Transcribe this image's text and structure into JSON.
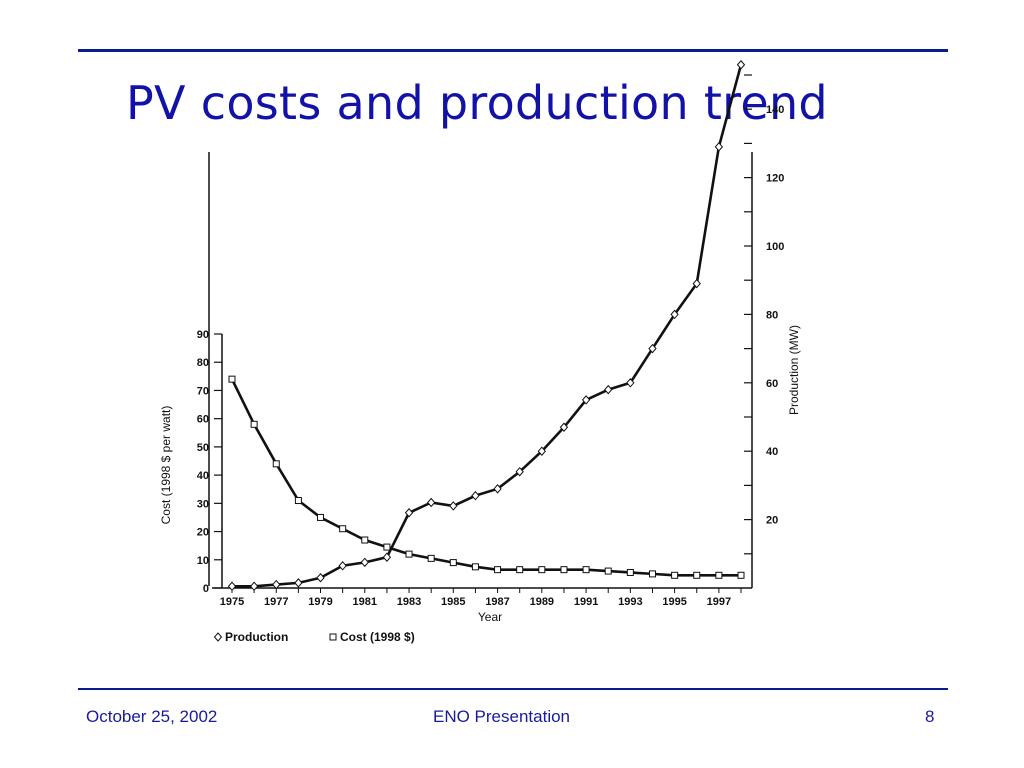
{
  "slide": {
    "title": "PV costs and production trend"
  },
  "footer": {
    "date": "October 25, 2002",
    "presentation": "ENO Presentation",
    "page_number": "8"
  },
  "chart_data": {
    "type": "line",
    "xlabel": "Year",
    "ylabel_left": "Cost (1998 $ per watt)",
    "ylabel_right": "Production (MW)",
    "ylim_left": [
      0,
      90
    ],
    "ylim_right": [
      0,
      150
    ],
    "yticks_left": [
      0,
      10,
      20,
      30,
      40,
      50,
      60,
      70,
      80,
      90
    ],
    "yticks_right": [
      20,
      40,
      60,
      80,
      100,
      120,
      140
    ],
    "x_tick_labels": [
      "1975",
      "1977",
      "1979",
      "1981",
      "1983",
      "1985",
      "1987",
      "1989",
      "1991",
      "1993",
      "1995",
      "1997"
    ],
    "x": [
      1975,
      1976,
      1977,
      1978,
      1979,
      1980,
      1981,
      1982,
      1983,
      1984,
      1985,
      1986,
      1987,
      1988,
      1989,
      1990,
      1991,
      1992,
      1993,
      1994,
      1995,
      1996,
      1997,
      1998
    ],
    "legend_position": "bottom-left",
    "series": [
      {
        "name": "Production",
        "axis": "right",
        "marker": "diamond",
        "values": [
          0.5,
          0.5,
          1,
          1.5,
          3,
          6.5,
          7.5,
          9,
          22,
          25,
          24,
          27,
          29,
          34,
          40,
          47,
          55,
          58,
          60,
          70,
          80,
          89,
          129,
          153
        ]
      },
      {
        "name": "Cost (1998 $)",
        "axis": "left",
        "marker": "square",
        "values": [
          74,
          58,
          44,
          31,
          25,
          21,
          17,
          14.5,
          12,
          10.5,
          9,
          7.5,
          6.5,
          6.5,
          6.5,
          6.5,
          6.5,
          6,
          5.5,
          5,
          4.5,
          4.5,
          4.5,
          4.5
        ]
      }
    ]
  }
}
